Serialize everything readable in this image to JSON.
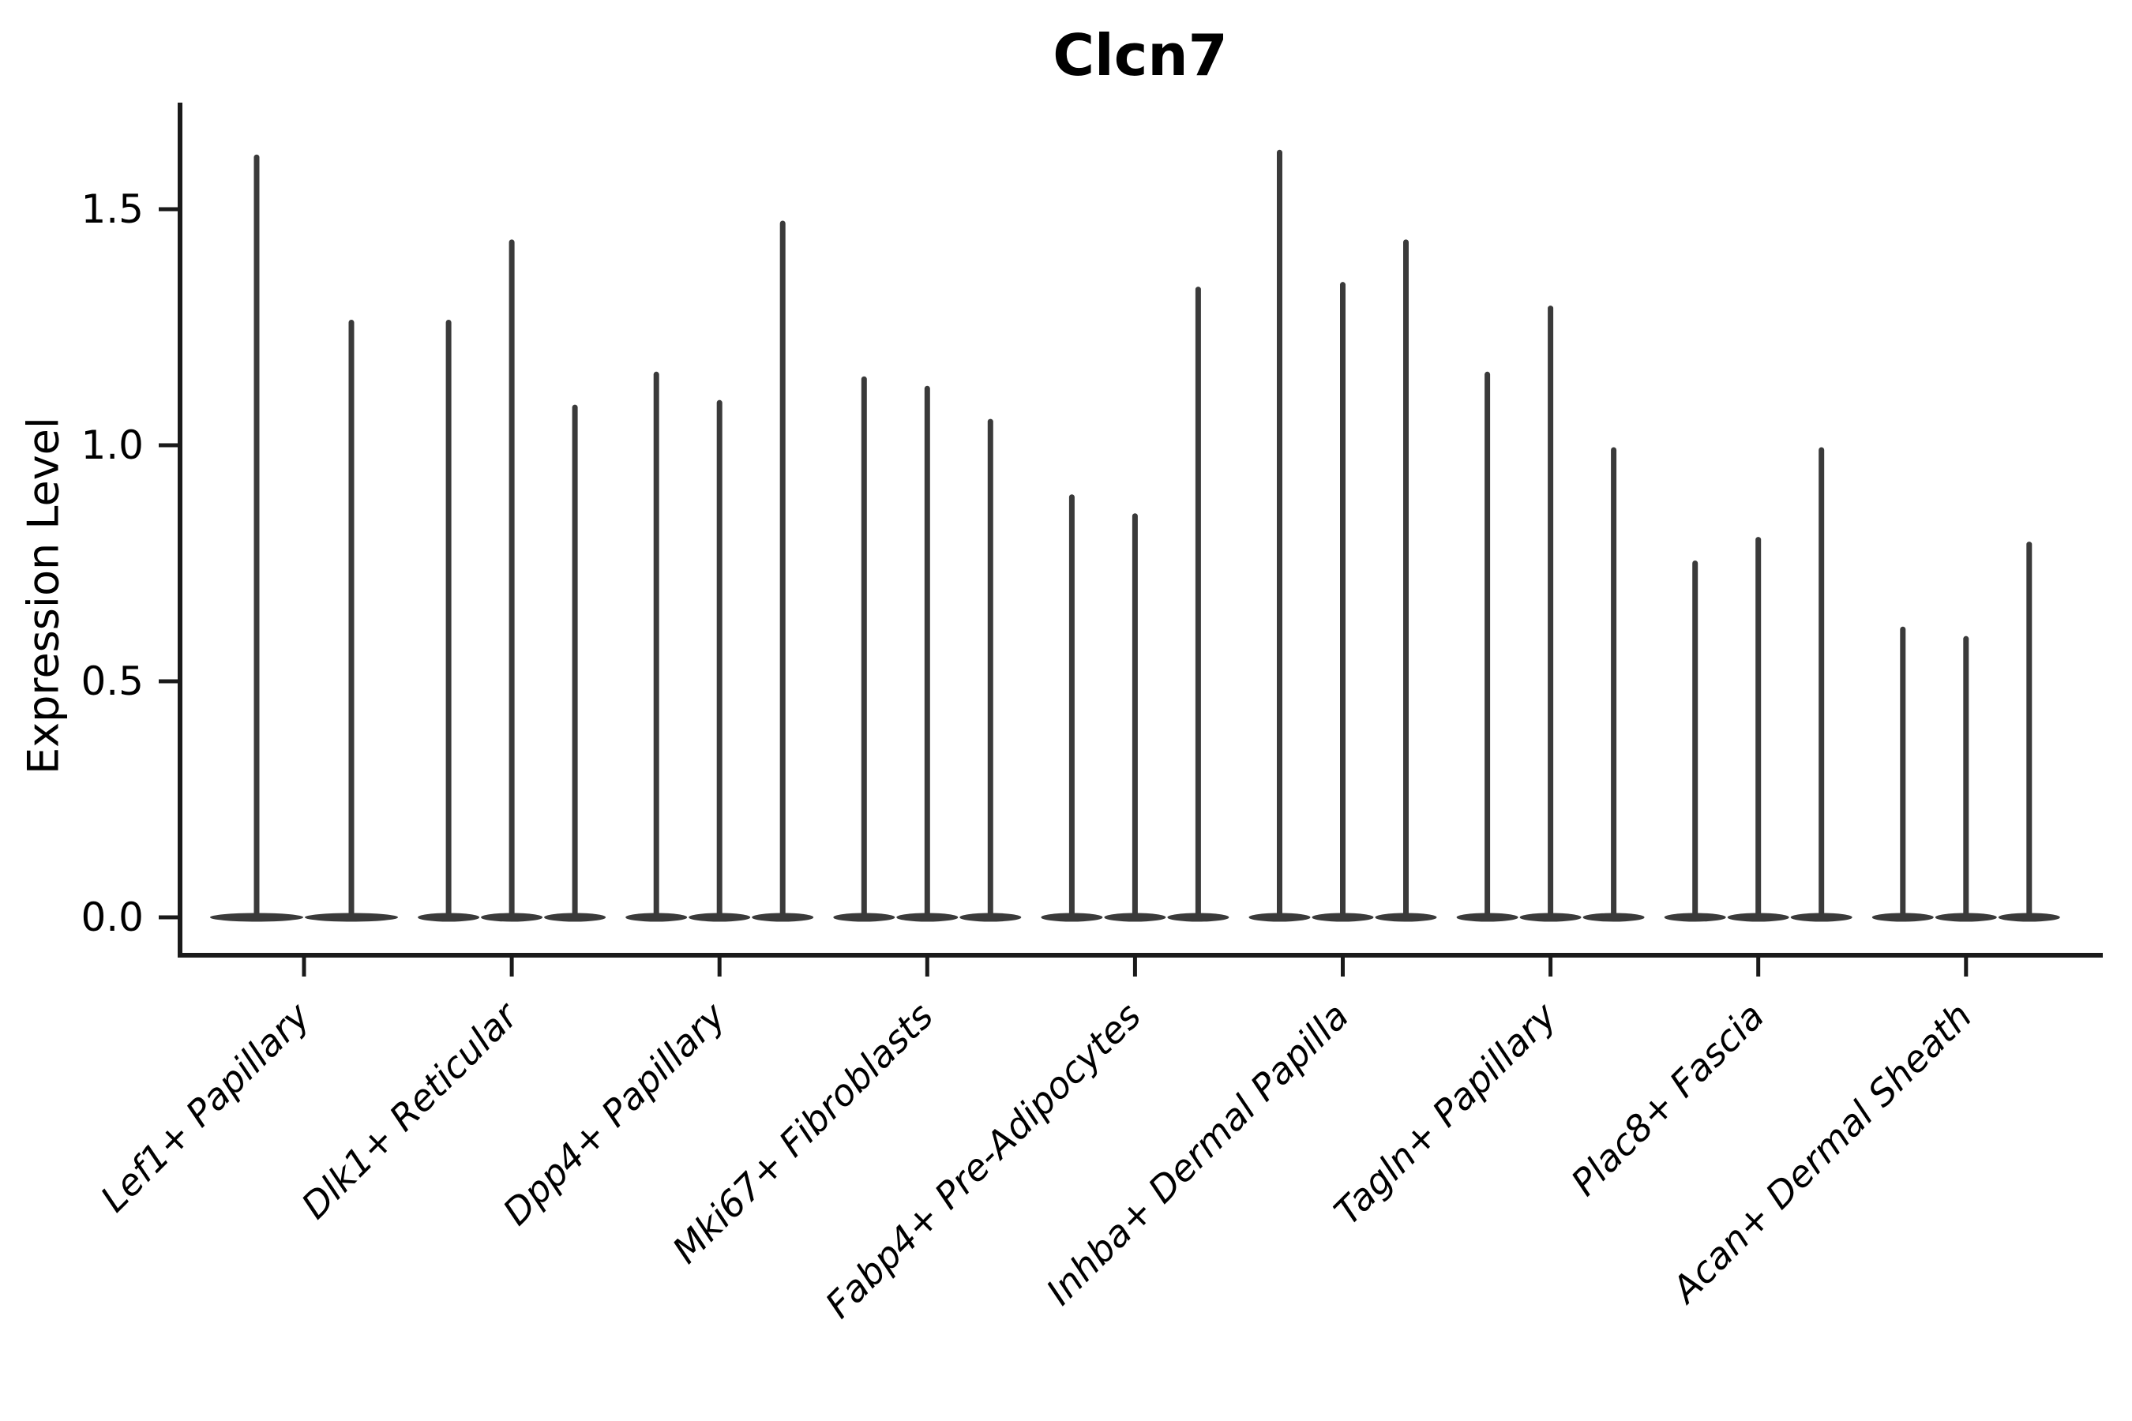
{
  "chart_data": {
    "type": "violin",
    "title": "Clcn7",
    "xlabel": "",
    "ylabel": "Expression Level",
    "yticks": [
      0.0,
      0.5,
      1.0,
      1.5
    ],
    "ylim": [
      -0.08,
      1.73
    ],
    "grid": false,
    "legend": "none",
    "categories": [
      "Lef1+ Papillary",
      "Dlk1+ Reticular",
      "Dpp4+ Papillary",
      "Mki67+ Fibroblasts",
      "Fabp4+ Pre-Adipocytes",
      "Inhba+ Dermal Papilla",
      "Tagln+ Papillary",
      "Plac8+ Fascia",
      "Acan+ Dermal Sheath"
    ],
    "violins": [
      {
        "category": "Lef1+ Papillary",
        "max_values": [
          1.61,
          1.26
        ]
      },
      {
        "category": "Dlk1+ Reticular",
        "max_values": [
          1.26,
          1.43,
          1.08
        ]
      },
      {
        "category": "Dpp4+ Papillary",
        "max_values": [
          1.15,
          1.09,
          1.47
        ]
      },
      {
        "category": "Mki67+ Fibroblasts",
        "max_values": [
          1.14,
          1.12,
          1.05
        ]
      },
      {
        "category": "Fabp4+ Pre-Adipocytes",
        "max_values": [
          0.89,
          0.85,
          1.33
        ]
      },
      {
        "category": "Inhba+ Dermal Papilla",
        "max_values": [
          1.62,
          1.34,
          1.43
        ]
      },
      {
        "category": "Tagln+ Papillary",
        "max_values": [
          1.15,
          1.29,
          0.99
        ]
      },
      {
        "category": "Plac8+ Fascia",
        "max_values": [
          0.75,
          0.8,
          0.99
        ]
      },
      {
        "category": "Acan+ Dermal Sheath",
        "max_values": [
          0.61,
          0.59,
          0.79
        ]
      }
    ],
    "colors": {
      "violin": "#3a3a3a",
      "axis": "#1a1a1a",
      "text": "#000000",
      "background": "#ffffff"
    }
  }
}
